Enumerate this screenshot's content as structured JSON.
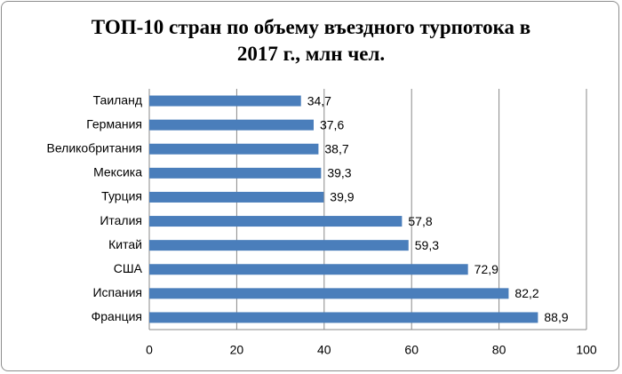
{
  "chart_data": {
    "type": "bar",
    "orientation": "horizontal",
    "title": "ТОП-10 стран по объему въездного турпотока в 2017 г., млн чел.",
    "categories": [
      "Таиланд",
      "Германия",
      "Великобритания",
      "Мексика",
      "Турция",
      "Италия",
      "Китай",
      "США",
      "Испания",
      "Франция"
    ],
    "values": [
      34.7,
      37.6,
      38.7,
      39.3,
      39.9,
      57.8,
      59.3,
      72.9,
      82.2,
      88.9
    ],
    "value_labels": [
      "34,7",
      "37,6",
      "38,7",
      "39,3",
      "39,9",
      "57,8",
      "59,3",
      "72,9",
      "82,2",
      "88,9"
    ],
    "color": "#4a7ebb",
    "xlim": [
      0,
      100
    ],
    "xticks": [
      0,
      20,
      40,
      60,
      80,
      100
    ],
    "grid": true
  }
}
